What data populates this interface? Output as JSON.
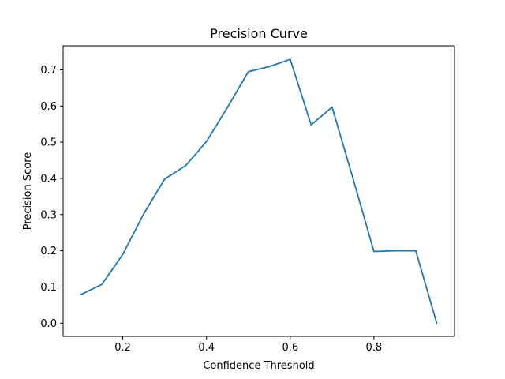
{
  "chart_data": {
    "type": "line",
    "title": "Precision Curve",
    "xlabel": "Confidence Threshold",
    "ylabel": "Precision Score",
    "xlim": [
      0.0575,
      0.9925
    ],
    "ylim": [
      -0.0365,
      0.7665
    ],
    "xticks": [
      0.2,
      0.4,
      0.6,
      0.8
    ],
    "xtick_labels": [
      "0.2",
      "0.4",
      "0.6",
      "0.8"
    ],
    "yticks": [
      0.0,
      0.1,
      0.2,
      0.3,
      0.4,
      0.5,
      0.6,
      0.7
    ],
    "ytick_labels": [
      "0.0",
      "0.1",
      "0.2",
      "0.3",
      "0.4",
      "0.5",
      "0.6",
      "0.7"
    ],
    "grid": false,
    "series": [
      {
        "color": "#1f77b4",
        "x": [
          0.1,
          0.15,
          0.2,
          0.25,
          0.3,
          0.35,
          0.4,
          0.45,
          0.5,
          0.55,
          0.6,
          0.65,
          0.7,
          0.75,
          0.8,
          0.85,
          0.9,
          0.95
        ],
        "y": [
          0.079,
          0.107,
          0.19,
          0.302,
          0.398,
          0.435,
          0.502,
          0.596,
          0.695,
          0.709,
          0.729,
          0.548,
          0.597,
          0.4,
          0.198,
          0.2,
          0.2,
          0.0
        ]
      }
    ]
  }
}
